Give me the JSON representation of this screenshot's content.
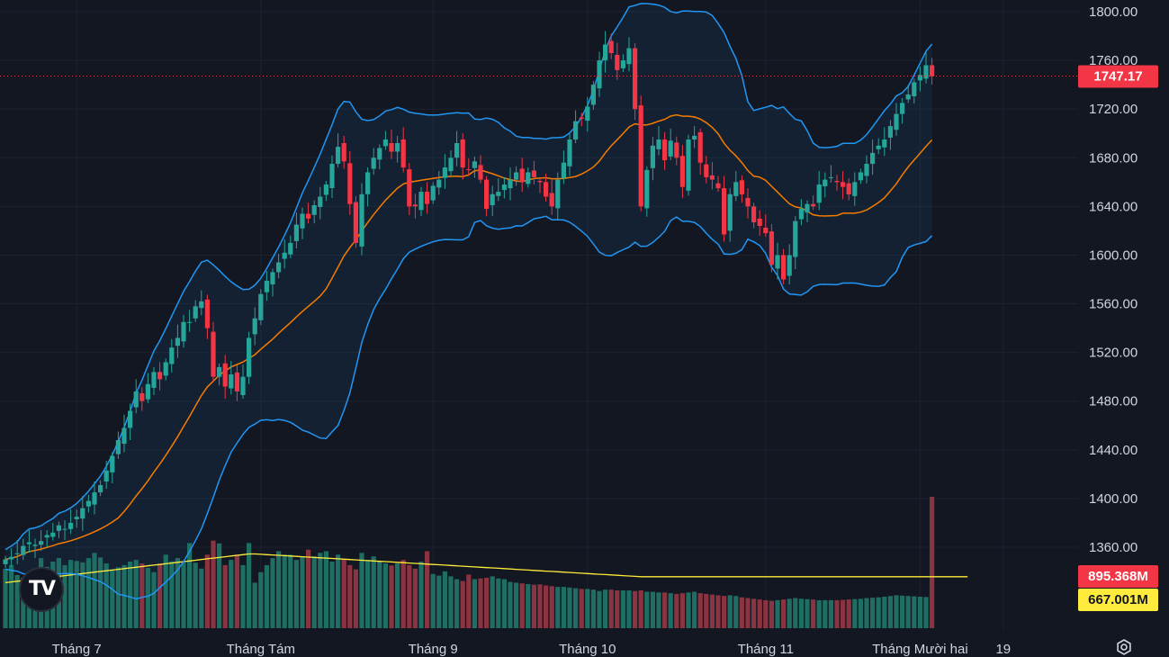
{
  "colors": {
    "background": "#131722",
    "grid": "#1e222d",
    "up": "#26a69a",
    "down": "#f23645",
    "up_volume": "#1f6e63",
    "down_volume": "#8a3441",
    "bollinger_band": "#2196f3",
    "basis": "#f57c00",
    "volume_ma": "#ffeb3b",
    "band_fill": "rgba(33,150,243,0.08)",
    "axis_text": "#d1d4dc",
    "price_tag": "#f23645",
    "volume_tag": "#f23645",
    "volume_ma_tag": "#ffeb3b"
  },
  "branding": {
    "logo_text": "TV"
  },
  "last_price_label": "1747.17",
  "volume_label": "895.368M",
  "volume_ma_label": "667.001M",
  "chart_data": {
    "type": "candlestick",
    "title": "",
    "ylim": [
      1310,
      1820
    ],
    "y_ticks": [
      "1800.00",
      "1760.00",
      "1720.00",
      "1680.00",
      "1640.00",
      "1600.00",
      "1560.00",
      "1520.00",
      "1480.00",
      "1440.00",
      "1400.00",
      "1360.00"
    ],
    "y_tick_values": [
      1800,
      1760,
      1720,
      1680,
      1640,
      1600,
      1560,
      1520,
      1480,
      1440,
      1400,
      1360
    ],
    "x_ticks": [
      "Tháng 7",
      "Tháng Tám",
      "Tháng 9",
      "Tháng 10",
      "Tháng 11",
      "Tháng Mười hai",
      "19"
    ],
    "x_tick_index": [
      12,
      43,
      72,
      98,
      128,
      154,
      168
    ],
    "last_price": 1747.17,
    "volume_last": 895.368,
    "volume_ma_last": 667.001,
    "volume_unit": "M",
    "close": [
      1350,
      1352,
      1355,
      1361,
      1364,
      1362,
      1365,
      1370,
      1372,
      1378,
      1375,
      1380,
      1385,
      1392,
      1398,
      1405,
      1411,
      1423,
      1435,
      1448,
      1458,
      1472,
      1488,
      1480,
      1494,
      1504,
      1498,
      1512,
      1524,
      1532,
      1545,
      1545,
      1558,
      1562,
      1540,
      1500,
      1508,
      1492,
      1502,
      1488,
      1500,
      1532,
      1548,
      1568,
      1579,
      1586,
      1594,
      1602,
      1610,
      1625,
      1634,
      1630,
      1641,
      1648,
      1658,
      1675,
      1689,
      1677,
      1642,
      1610,
      1650,
      1668,
      1680,
      1688,
      1695,
      1685,
      1692,
      1672,
      1640,
      1640,
      1652,
      1642,
      1657,
      1662,
      1672,
      1680,
      1692,
      1672,
      1670,
      1677,
      1662,
      1638,
      1650,
      1652,
      1658,
      1662,
      1668,
      1660,
      1668,
      1664,
      1660,
      1648,
      1640,
      1662,
      1676,
      1695,
      1710,
      1712,
      1722,
      1740,
      1760,
      1773,
      1766,
      1752,
      1760,
      1770,
      1720,
      1640,
      1670,
      1690,
      1695,
      1678,
      1694,
      1680,
      1656,
      1695,
      1698,
      1676,
      1664,
      1662,
      1655,
      1617,
      1650,
      1660,
      1650,
      1640,
      1627,
      1624,
      1618,
      1592,
      1600,
      1580,
      1600,
      1628,
      1638,
      1642,
      1640,
      1658,
      1662,
      1664,
      1660,
      1656,
      1650,
      1660,
      1668,
      1675,
      1684,
      1690,
      1695,
      1706,
      1716,
      1725,
      1732,
      1742,
      1748,
      1756,
      1747
    ],
    "volume": [
      690,
      700,
      672,
      664,
      680,
      690,
      720,
      695,
      710,
      720,
      700,
      715,
      712,
      708,
      720,
      735,
      722,
      705,
      688,
      694,
      700,
      710,
      715,
      705,
      692,
      680,
      704,
      730,
      711,
      720,
      708,
      763,
      707,
      690,
      730,
      770,
      762,
      700,
      715,
      730,
      700,
      763,
      650,
      680,
      700,
      720,
      740,
      730,
      730,
      715,
      724,
      744,
      725,
      735,
      740,
      710,
      730,
      718,
      700,
      688,
      735,
      715,
      725,
      710,
      705,
      699,
      705,
      715,
      700,
      690,
      710,
      740,
      675,
      670,
      682,
      668,
      660,
      655,
      673,
      660,
      662,
      664,
      668,
      662,
      660,
      652,
      650,
      648,
      646,
      644,
      645,
      642,
      640,
      638,
      638,
      636,
      634,
      632,
      632,
      630,
      626,
      630,
      630,
      628,
      628,
      628,
      626,
      628,
      624,
      624,
      622,
      622,
      620,
      618,
      620,
      622,
      624,
      620,
      618,
      616,
      614,
      612,
      614,
      612,
      608,
      606,
      604,
      602,
      600,
      598,
      600,
      602,
      604,
      606,
      604,
      603,
      602,
      600,
      600,
      600,
      600,
      601,
      602,
      603,
      604,
      606,
      607,
      608,
      610,
      612,
      614,
      613,
      612,
      611,
      610,
      609,
      895
    ],
    "volume_ma": [
      650,
      652,
      654,
      656,
      658,
      660,
      662,
      664,
      666,
      668,
      670,
      672,
      674,
      676,
      678,
      680,
      682,
      684,
      686,
      688,
      690,
      692,
      694,
      696,
      698,
      700,
      702,
      704,
      706,
      708,
      710,
      712,
      714,
      716,
      718,
      720,
      722,
      724,
      726,
      728,
      730,
      732,
      732,
      731,
      730,
      729,
      728,
      727,
      726,
      725,
      724,
      723,
      722,
      721,
      720,
      719,
      718,
      717,
      716,
      715,
      714,
      713,
      712,
      711,
      710,
      709,
      708,
      707,
      706,
      705,
      704,
      703,
      702,
      701,
      700,
      699,
      698,
      697,
      696,
      695,
      694,
      693,
      692,
      691,
      690,
      689,
      688,
      687,
      686,
      685,
      684,
      683,
      682,
      681,
      680,
      679,
      678,
      677,
      676,
      675,
      674,
      673,
      672,
      671,
      670,
      669,
      668,
      667,
      667,
      667,
      667,
      667,
      667,
      667,
      667,
      667,
      667,
      667,
      667,
      667,
      667,
      667,
      667,
      667,
      667,
      667,
      667,
      667,
      667,
      667,
      667,
      667,
      667,
      667,
      667,
      667,
      667,
      667,
      667,
      667,
      667,
      667,
      667,
      667,
      667,
      667,
      667,
      667,
      667,
      667,
      667,
      667,
      667,
      667,
      667,
      667,
      667,
      667,
      667,
      667,
      667,
      667,
      667
    ],
    "series": [
      {
        "name": "Bollinger Upper"
      },
      {
        "name": "Bollinger Basis"
      },
      {
        "name": "Bollinger Lower"
      },
      {
        "name": "Volume"
      },
      {
        "name": "Volume MA"
      }
    ]
  }
}
